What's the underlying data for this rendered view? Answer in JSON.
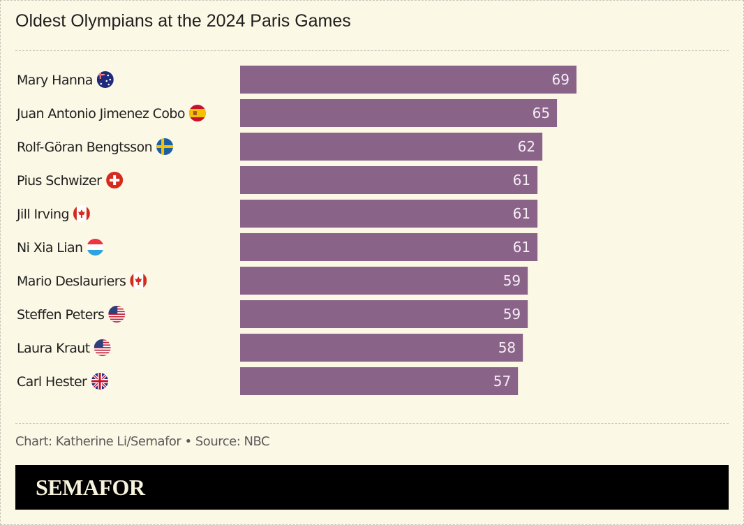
{
  "header": {
    "title": "Oldest Olympians at the 2024 Paris Games"
  },
  "footer": {
    "credit": "Chart: Katherine Li/Semafor • Source: NBC",
    "brand": "SEMAFOR"
  },
  "colors": {
    "bar": "#8a6389",
    "background": "#fcf8e6",
    "brand_bg": "#000000",
    "brand_text": "#f8f3dc"
  },
  "chart_data": {
    "type": "bar",
    "orientation": "horizontal",
    "title": "Oldest Olympians at the 2024 Paris Games",
    "xlabel": "",
    "ylabel": "",
    "xlim": [
      0,
      69
    ],
    "grid": false,
    "categories": [
      "Mary Hanna",
      "Juan Antonio Jimenez Cobo",
      "Rolf-Göran Bengtsson",
      "Pius Schwizer",
      "Jill Irving",
      "Ni Xia Lian",
      "Mario Deslauriers",
      "Steffen Peters",
      "Laura Kraut",
      "Carl Hester"
    ],
    "flags": [
      "australia-flag",
      "spain-flag",
      "sweden-flag",
      "switzerland-flag",
      "canada-flag",
      "luxembourg-flag",
      "canada-flag",
      "usa-flag",
      "usa-flag",
      "uk-flag"
    ],
    "values": [
      69,
      65,
      62,
      61,
      61,
      61,
      59,
      59,
      58,
      57
    ]
  }
}
